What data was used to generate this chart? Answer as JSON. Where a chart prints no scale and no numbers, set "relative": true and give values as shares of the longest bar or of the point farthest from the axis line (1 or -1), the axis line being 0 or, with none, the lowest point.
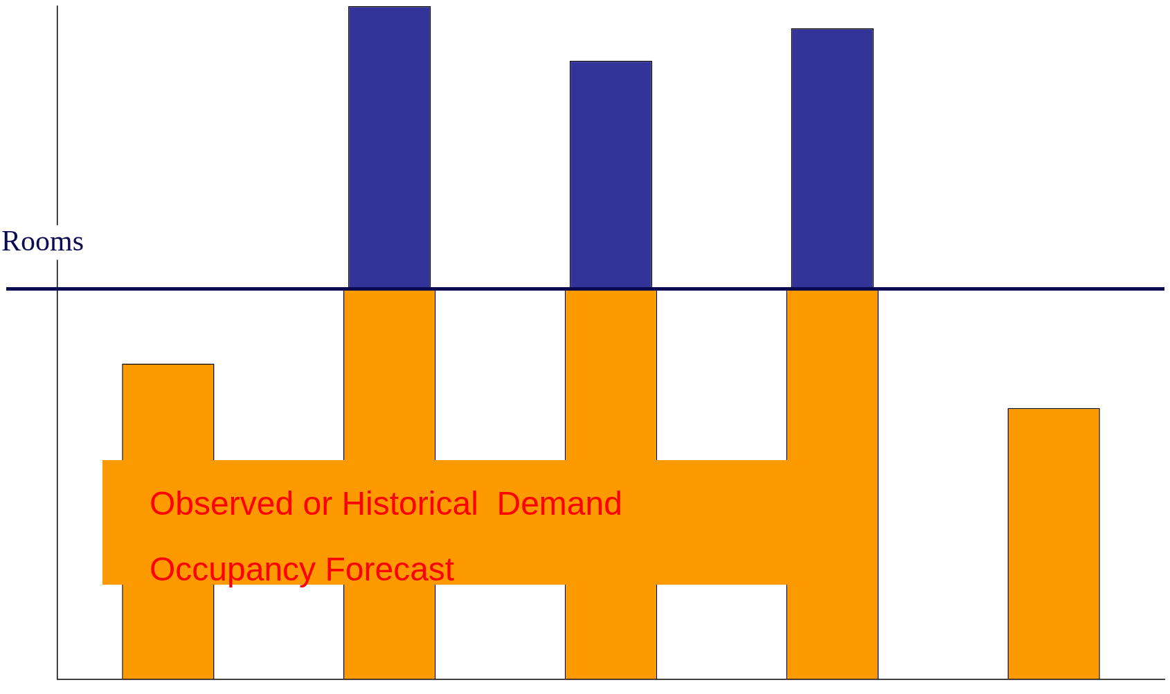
{
  "chart_data": {
    "type": "bar",
    "relative": true,
    "stacked": true,
    "categories": [
      null,
      null,
      null,
      null,
      null
    ],
    "series": [
      {
        "color": "#fd9a00",
        "values": [
          0.469,
          0.58,
          0.58,
          0.58,
          0.403
        ]
      },
      {
        "color": "#333399",
        "values": [
          null,
          0.42,
          0.339,
          0.387,
          null
        ]
      }
    ],
    "ref_lines": [
      {
        "axis": "y",
        "value": 0.58,
        "label": "Rooms",
        "color": "#0a0a50"
      }
    ],
    "annotations": [
      "Observed or Historical  Demand",
      "Occupancy Forecast"
    ],
    "grid": false,
    "legend": false
  }
}
